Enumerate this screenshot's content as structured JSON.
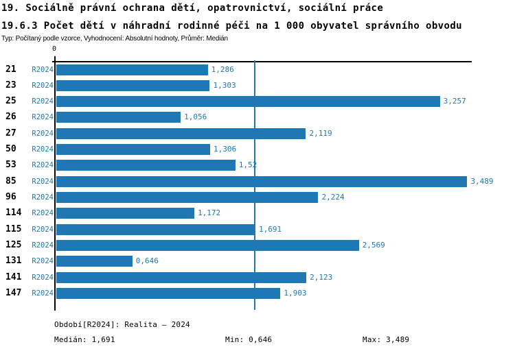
{
  "header": {
    "title_line1": "19. Sociálně právní ochrana dětí, opatrovnictví, sociální práce",
    "title_line2": "19.6.3 Počet dětí v náhradní rodinné péči na 1 000 obyvatel správního obvodu",
    "subtitle": "Typ: Počítaný podle vzorce, Vyhodnocení: Absolutní hodnoty, Průměr: Medián"
  },
  "chart_data": {
    "type": "bar",
    "orientation": "horizontal",
    "title": "19.6.3 Počet dětí v náhradní rodinné péči na 1 000 obyvatel správního obvodu",
    "categories": [
      "21",
      "23",
      "25",
      "26",
      "27",
      "50",
      "53",
      "85",
      "96",
      "114",
      "115",
      "125",
      "131",
      "141",
      "147"
    ],
    "series": [
      {
        "name": "R2024",
        "values": [
          1.286,
          1.303,
          3.257,
          1.056,
          2.119,
          1.306,
          1.52,
          3.489,
          2.224,
          1.172,
          1.691,
          2.569,
          0.646,
          2.123,
          1.903
        ],
        "value_labels": [
          "1,286",
          "1,303",
          "3,257",
          "1,056",
          "2,119",
          "1,306",
          "1,52",
          "3,489",
          "2,224",
          "1,172",
          "1,691",
          "2,569",
          "0,646",
          "2,123",
          "1,903"
        ]
      }
    ],
    "x_tick_labels": [
      "0"
    ],
    "xlim": [
      0,
      3.533
    ],
    "median_line_value": 1.691,
    "grid": false,
    "legend_position": "none",
    "bar_color": "#1f77b4",
    "axis_color": "#000000",
    "label_color": "#1f77b4"
  },
  "footer": {
    "period": "Období[R2024]: Realita – 2024",
    "median": "Medián: 1,691",
    "min": "Min: 0,646",
    "max": "Max: 3,489"
  }
}
